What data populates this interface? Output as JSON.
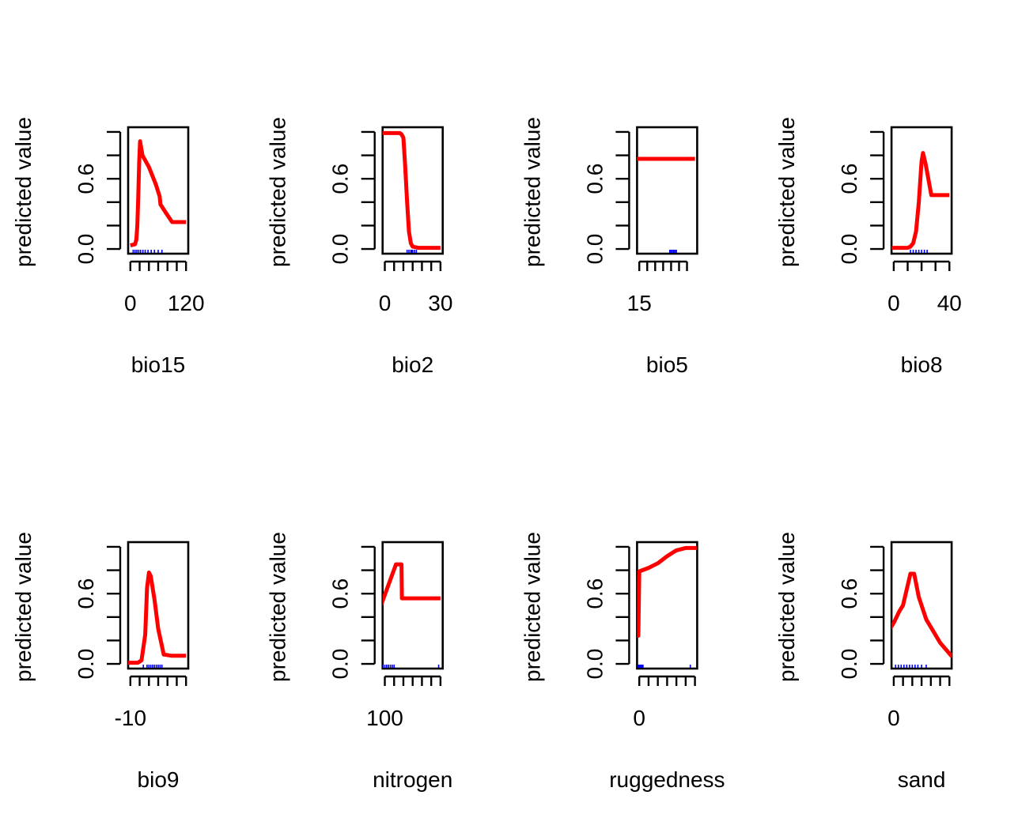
{
  "colors": {
    "curve": "#ff0000",
    "rug": "#0000ff",
    "axis": "#000000",
    "background": "#ffffff"
  },
  "chart_data": [
    {
      "type": "line",
      "xlabel": "bio15",
      "ylabel": "predicted value",
      "xlim": [
        0,
        120
      ],
      "ylim": [
        0,
        1
      ],
      "yticks": [
        0,
        0.2,
        0.4,
        0.6,
        0.8,
        1.0
      ],
      "ytick_labels": [
        "0.0",
        "0.6"
      ],
      "xticks": [
        0,
        20,
        40,
        60,
        80,
        100,
        120
      ],
      "xtick_labels": [
        "0",
        "120"
      ],
      "x": [
        0,
        10,
        13,
        15,
        17,
        19,
        21,
        26,
        40,
        55,
        63,
        65,
        78,
        90,
        120
      ],
      "y": [
        0.03,
        0.04,
        0.08,
        0.2,
        0.45,
        0.75,
        0.92,
        0.8,
        0.7,
        0.55,
        0.45,
        0.38,
        0.3,
        0.23,
        0.23
      ],
      "rug": [
        6,
        10,
        14,
        18,
        22,
        27,
        32,
        38,
        45,
        52,
        60,
        68
      ]
    },
    {
      "type": "line",
      "xlabel": "bio2",
      "ylabel": "predicted value",
      "xlim": [
        0,
        30
      ],
      "ylim": [
        0,
        1
      ],
      "yticks": [
        0,
        0.2,
        0.4,
        0.6,
        0.8,
        1.0
      ],
      "ytick_labels": [
        "0.0",
        "0.6"
      ],
      "xticks": [
        0,
        5,
        10,
        15,
        20,
        25,
        30
      ],
      "xtick_labels": [
        "0",
        "30"
      ],
      "x": [
        -4,
        8,
        9,
        10,
        11,
        12,
        13,
        14,
        15,
        18,
        30
      ],
      "y": [
        0.99,
        0.99,
        0.98,
        0.95,
        0.7,
        0.4,
        0.15,
        0.05,
        0.02,
        0.01,
        0.01
      ],
      "rug": [
        12,
        13,
        14,
        14.5,
        15,
        16,
        17
      ]
    },
    {
      "type": "line",
      "xlabel": "bio5",
      "ylabel": "predicted value",
      "xlim": [
        15,
        36
      ],
      "ylim": [
        0,
        1
      ],
      "yticks": [
        0,
        0.2,
        0.4,
        0.6,
        0.8,
        1.0
      ],
      "ytick_labels": [
        "0.0",
        "0.6"
      ],
      "xticks": [
        15,
        18,
        21,
        24,
        27,
        30,
        33
      ],
      "xtick_labels": [
        "15"
      ],
      "x": [
        11,
        36
      ],
      "y": [
        0.77,
        0.77
      ],
      "rug": [
        26.5,
        27,
        27.5,
        28,
        28.5,
        29
      ]
    },
    {
      "type": "line",
      "xlabel": "bio8",
      "ylabel": "predicted value",
      "xlim": [
        0,
        40
      ],
      "ylim": [
        0,
        1
      ],
      "yticks": [
        0,
        0.2,
        0.4,
        0.6,
        0.8,
        1.0
      ],
      "ytick_labels": [
        "0.0",
        "0.6"
      ],
      "xticks": [
        0,
        10,
        20,
        30,
        40
      ],
      "xtick_labels": [
        "0",
        "40"
      ],
      "x": [
        -5,
        10,
        12,
        14,
        16,
        18,
        20,
        21,
        23,
        27,
        40
      ],
      "y": [
        0.01,
        0.01,
        0.02,
        0.05,
        0.15,
        0.4,
        0.75,
        0.82,
        0.72,
        0.46,
        0.46
      ],
      "rug": [
        12,
        14,
        16,
        18,
        20,
        22,
        24
      ]
    },
    {
      "type": "line",
      "xlabel": "bio9",
      "ylabel": "predicted value",
      "xlim": [
        -10,
        20
      ],
      "ylim": [
        0,
        1
      ],
      "yticks": [
        0,
        0.2,
        0.4,
        0.6,
        0.8,
        1.0
      ],
      "ytick_labels": [
        "0.0",
        "0.6"
      ],
      "xticks": [
        -10,
        -5,
        0,
        5,
        10,
        15,
        20
      ],
      "xtick_labels": [
        "-10"
      ],
      "x": [
        -14,
        -6,
        -4,
        -2,
        -1,
        0,
        1,
        3,
        5,
        8,
        12,
        20
      ],
      "y": [
        0.01,
        0.01,
        0.03,
        0.25,
        0.65,
        0.78,
        0.75,
        0.55,
        0.3,
        0.08,
        0.07,
        0.07
      ],
      "rug": [
        -3,
        -1,
        0,
        1,
        2,
        3,
        4,
        5,
        6,
        7
      ]
    },
    {
      "type": "line",
      "xlabel": "nitrogen",
      "ylabel": "predicted value",
      "xlim": [
        100,
        250
      ],
      "ylim": [
        0,
        1
      ],
      "yticks": [
        0,
        0.2,
        0.4,
        0.6,
        0.8,
        1.0
      ],
      "ytick_labels": [
        "0.0",
        "0.6"
      ],
      "xticks": [
        100,
        125,
        150,
        175,
        200,
        225,
        250
      ],
      "xtick_labels": [
        "100"
      ],
      "x": [
        85,
        130,
        145,
        146,
        250
      ],
      "y": [
        0.46,
        0.85,
        0.85,
        0.56,
        0.56
      ],
      "rug": [
        90,
        95,
        100,
        105,
        110,
        115,
        120,
        125,
        245
      ]
    },
    {
      "type": "line",
      "xlabel": "ruggedness",
      "ylabel": "predicted value",
      "xlim": [
        0,
        60
      ],
      "ylim": [
        0,
        1
      ],
      "yticks": [
        0,
        0.2,
        0.4,
        0.6,
        0.8,
        1.0
      ],
      "ytick_labels": [
        "0.0",
        "0.6"
      ],
      "xticks": [
        0,
        10,
        20,
        30,
        40,
        50,
        60
      ],
      "xtick_labels": [
        "0"
      ],
      "x": [
        -9,
        -1,
        0,
        10,
        20,
        30,
        40,
        50,
        62
      ],
      "y": [
        0.24,
        0.24,
        0.79,
        0.82,
        0.86,
        0.92,
        0.97,
        0.99,
        0.99
      ],
      "rug": [
        -1,
        0,
        1,
        2,
        3,
        4,
        55
      ]
    },
    {
      "type": "line",
      "xlabel": "sand",
      "ylabel": "predicted value",
      "xlim": [
        0,
        60
      ],
      "ylim": [
        0,
        1
      ],
      "yticks": [
        0,
        0.2,
        0.4,
        0.6,
        0.8,
        1.0
      ],
      "ytick_labels": [
        "0.0",
        "0.6"
      ],
      "xticks": [
        0,
        10,
        20,
        30,
        40,
        50,
        60
      ],
      "xtick_labels": [
        "0"
      ],
      "x": [
        -4,
        0,
        6,
        10,
        18,
        22,
        27,
        35,
        50,
        62,
        68
      ],
      "y": [
        0.3,
        0.35,
        0.45,
        0.5,
        0.77,
        0.77,
        0.57,
        0.38,
        0.18,
        0.07,
        0.05
      ],
      "rug": [
        2,
        5,
        8,
        11,
        14,
        17,
        20,
        23,
        26,
        30,
        35
      ]
    }
  ]
}
